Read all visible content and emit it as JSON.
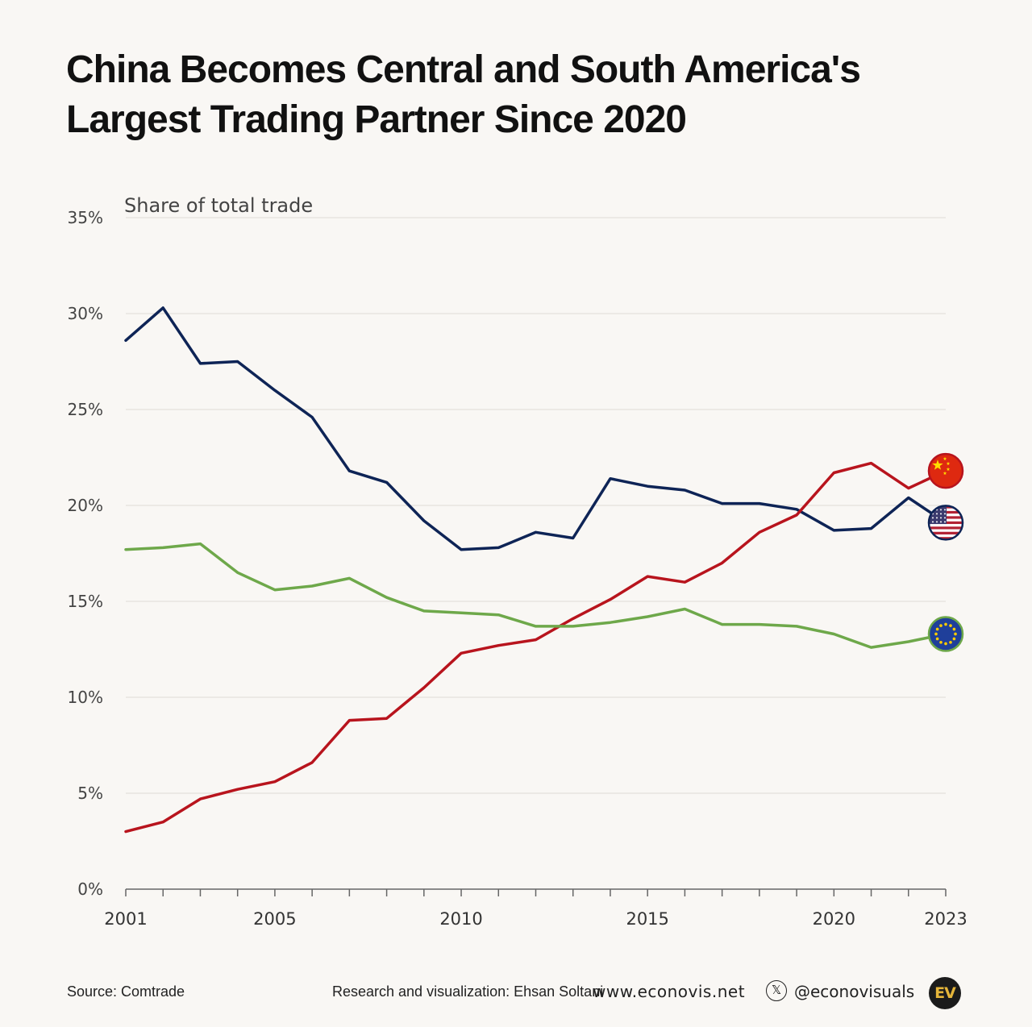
{
  "title": {
    "line1": "China Becomes Central and South America's",
    "line2": "Largest Trading Partner Since 2020"
  },
  "chart_data": {
    "type": "line",
    "ylabel": "Share of total trade",
    "ylim": [
      0,
      35
    ],
    "yticks": [
      "0%",
      "5%",
      "10%",
      "15%",
      "20%",
      "25%",
      "30%",
      "35%"
    ],
    "ytick_values": [
      0,
      5,
      10,
      15,
      20,
      25,
      30,
      35
    ],
    "x": [
      2001,
      2002,
      2003,
      2004,
      2005,
      2006,
      2007,
      2008,
      2009,
      2010,
      2011,
      2012,
      2013,
      2014,
      2015,
      2016,
      2017,
      2018,
      2019,
      2020,
      2021,
      2022,
      2023
    ],
    "xtick_labels": [
      "2001",
      "2005",
      "2010",
      "2015",
      "2020",
      "2023"
    ],
    "xtick_values": [
      2001,
      2005,
      2010,
      2015,
      2020,
      2023
    ],
    "grid": true,
    "series": [
      {
        "name": "United States",
        "color": "#0e2456",
        "marker": "us-flag-icon",
        "values": [
          28.6,
          30.3,
          27.4,
          27.5,
          26.0,
          24.6,
          21.8,
          21.2,
          19.2,
          17.7,
          17.8,
          18.6,
          18.3,
          21.4,
          21.0,
          20.8,
          20.1,
          20.1,
          19.8,
          18.7,
          18.8,
          20.4,
          19.1
        ]
      },
      {
        "name": "China",
        "color": "#b8141d",
        "marker": "china-flag-icon",
        "values": [
          3.0,
          3.5,
          4.7,
          5.2,
          5.6,
          6.6,
          8.8,
          8.9,
          10.5,
          12.3,
          12.7,
          13.0,
          14.1,
          15.1,
          16.3,
          16.0,
          17.0,
          18.6,
          19.5,
          21.7,
          22.2,
          20.9,
          21.8
        ]
      },
      {
        "name": "European Union",
        "color": "#6ea84a",
        "marker": "eu-flag-icon",
        "values": [
          17.7,
          17.8,
          18.0,
          16.5,
          15.6,
          15.8,
          16.2,
          15.2,
          14.5,
          14.4,
          14.3,
          13.7,
          13.7,
          13.9,
          14.2,
          14.6,
          13.8,
          13.8,
          13.7,
          13.3,
          12.6,
          12.9,
          13.3
        ]
      }
    ]
  },
  "footer": {
    "source": "Source: Comtrade",
    "credit": "Research and visualization: Ehsan Soltani",
    "website": "www.econovis.net",
    "x_icon_glyph": "𝕏",
    "handle": "@econovisuals",
    "logo_text": "EV"
  }
}
